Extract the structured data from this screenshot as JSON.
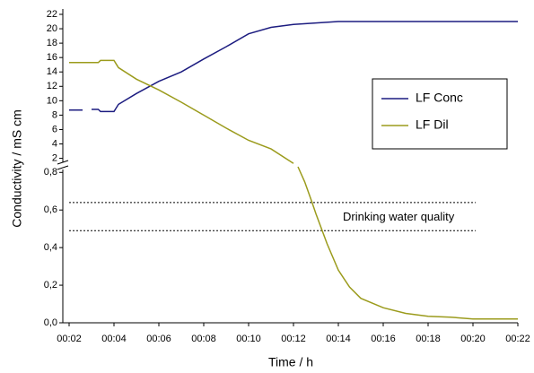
{
  "chart_data": [
    {
      "type": "line",
      "ylabel": "Conductivity / mS cm",
      "legend": "right",
      "ylim": [
        1.2,
        22
      ],
      "yticks": [
        2,
        4,
        6,
        8,
        10,
        12,
        14,
        16,
        18,
        20,
        22
      ],
      "x": [
        2,
        2.6,
        2.8,
        3.0,
        3.3,
        3.4,
        4.0,
        4.2,
        5,
        6,
        7,
        8,
        9,
        10,
        11,
        12,
        13,
        14,
        16,
        22
      ],
      "series": [
        {
          "name": "LF Conc",
          "color": "#1c1c80",
          "values": [
            8.7,
            8.7,
            null,
            8.8,
            8.8,
            8.5,
            8.5,
            9.5,
            11,
            12.7,
            14,
            15.8,
            17.5,
            19.3,
            20.2,
            20.6,
            20.8,
            21,
            21,
            21
          ]
        },
        {
          "name": "LF Dil",
          "color": "#9b9b1c",
          "values": [
            15.3,
            15.3,
            15.3,
            15.3,
            15.3,
            15.6,
            15.6,
            14.6,
            13,
            11.5,
            9.8,
            8,
            6.2,
            4.5,
            3.3,
            1.3,
            null,
            null,
            null,
            null
          ]
        }
      ]
    },
    {
      "type": "line",
      "xlabel": "Time / h",
      "xlim": [
        2,
        22
      ],
      "xticks": [
        {
          "value": 2,
          "label": "00:02"
        },
        {
          "value": 4,
          "label": "00:04"
        },
        {
          "value": 6,
          "label": "00:06"
        },
        {
          "value": 8,
          "label": "00:08"
        },
        {
          "value": 10,
          "label": "00:10"
        },
        {
          "value": 12,
          "label": "00:12"
        },
        {
          "value": 14,
          "label": "00:14"
        },
        {
          "value": 16,
          "label": "00:16"
        },
        {
          "value": 18,
          "label": "00:18"
        },
        {
          "value": 20,
          "label": "00:20"
        },
        {
          "value": 22,
          "label": "00:22"
        }
      ],
      "ylim": [
        0,
        0.83
      ],
      "yticks": [
        {
          "value": 0,
          "label": "0,0"
        },
        {
          "value": 0.2,
          "label": "0,2"
        },
        {
          "value": 0.4,
          "label": "0,4"
        },
        {
          "value": 0.6,
          "label": "0,6"
        },
        {
          "value": 0.8,
          "label": "0,8"
        }
      ],
      "x": [
        12.2,
        12.5,
        12.8,
        13,
        13.5,
        14,
        14.5,
        15,
        16,
        17,
        18,
        19,
        20,
        22
      ],
      "series": [
        {
          "color": "#9b9b1c",
          "values": [
            0.83,
            0.75,
            0.65,
            0.58,
            0.42,
            0.28,
            0.19,
            0.13,
            0.08,
            0.05,
            0.035,
            0.03,
            0.02,
            0.02
          ]
        }
      ],
      "hlines": [
        0.64,
        0.49
      ],
      "annotation": "Drinking water quality"
    }
  ]
}
